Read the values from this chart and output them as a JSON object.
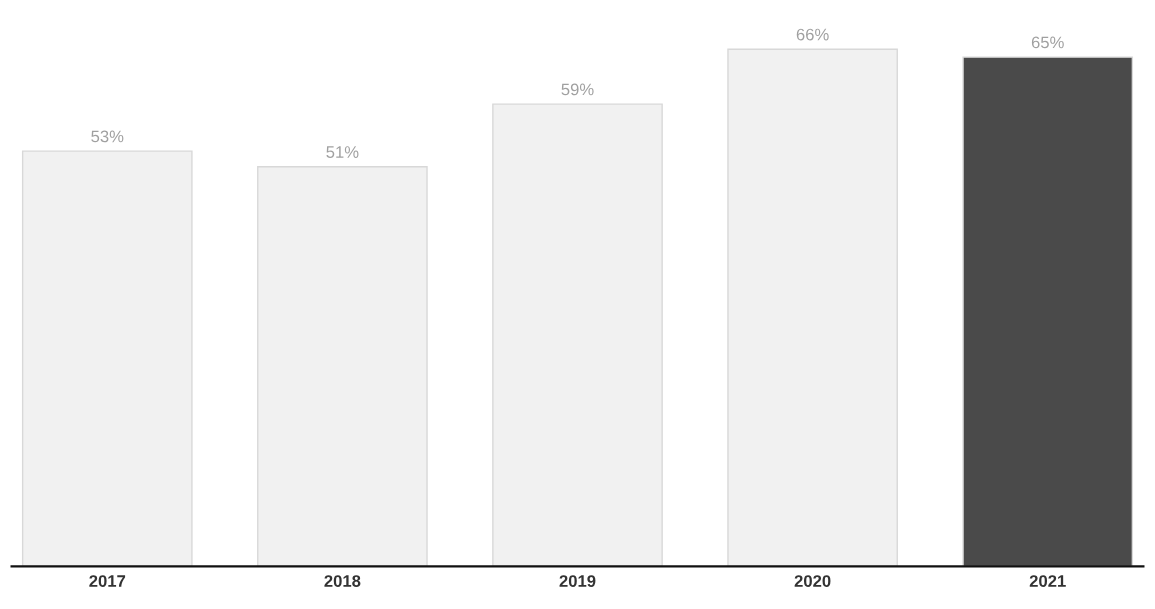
{
  "chart_data": {
    "type": "bar",
    "categories": [
      "2017",
      "2018",
      "2019",
      "2020",
      "2021"
    ],
    "values": [
      53,
      51,
      59,
      66,
      65
    ],
    "colors": [
      "#f1f1f1",
      "#f1f1f1",
      "#f1f1f1",
      "#f1f1f1",
      "#4a4a4a"
    ],
    "value_labels": [
      "53%",
      "51%",
      "59%",
      "66%",
      "65%"
    ],
    "grid": false,
    "legend": false,
    "tick_labels": "x"
  }
}
